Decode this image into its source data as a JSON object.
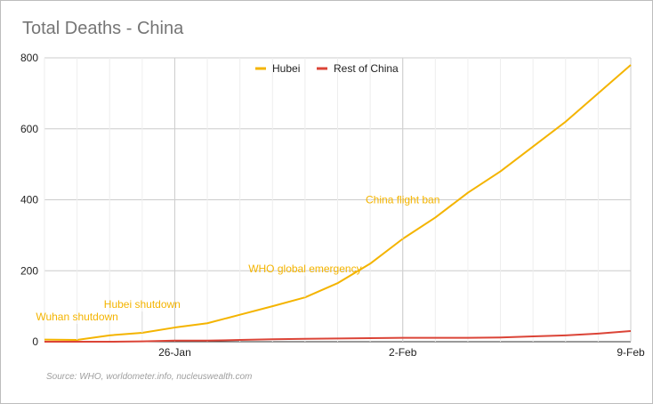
{
  "title": "Total Deaths - China",
  "source": "Source: WHO, worldometer.info, nucleuswealth.com",
  "chart_data": {
    "type": "line",
    "title": "Total Deaths - China",
    "xlabel": "",
    "ylabel": "",
    "ylim": [
      0,
      800
    ],
    "yticks": [
      0,
      200,
      400,
      600,
      800
    ],
    "yticklabels": [
      "0",
      "200",
      "400",
      "600",
      "800"
    ],
    "x_start": "22-Jan",
    "x_end": "9-Feb",
    "xticks": [
      "26-Jan",
      "2-Feb",
      "9-Feb"
    ],
    "grid": true,
    "legend_position": "top",
    "x": [
      "22-Jan",
      "23-Jan",
      "24-Jan",
      "25-Jan",
      "26-Jan",
      "27-Jan",
      "28-Jan",
      "29-Jan",
      "30-Jan",
      "31-Jan",
      "1-Feb",
      "2-Feb",
      "3-Feb",
      "4-Feb",
      "5-Feb",
      "6-Feb",
      "7-Feb",
      "8-Feb",
      "9-Feb"
    ],
    "series": [
      {
        "name": "Hubei",
        "color": "#f4b400",
        "values": [
          6,
          5,
          18,
          25,
          40,
          52,
          76,
          100,
          125,
          165,
          220,
          290,
          350,
          420,
          480,
          550,
          620,
          700,
          780
        ]
      },
      {
        "name": "Rest of China",
        "color": "#db4437",
        "values": [
          0,
          0,
          0,
          1,
          3,
          3,
          5,
          7,
          8,
          9,
          10,
          11,
          11,
          11,
          12,
          15,
          18,
          23,
          30
        ]
      }
    ],
    "annotations": [
      {
        "text": "Wuhan shutdown",
        "x": "23-Jan",
        "y": 5
      },
      {
        "text": "Hubei shutdown",
        "x": "25-Jan",
        "y": 25
      },
      {
        "text": "WHO global emergency",
        "x": "30-Jan",
        "y": 125
      },
      {
        "text": "China flight ban",
        "x": "2-Feb",
        "y": 290
      }
    ]
  }
}
